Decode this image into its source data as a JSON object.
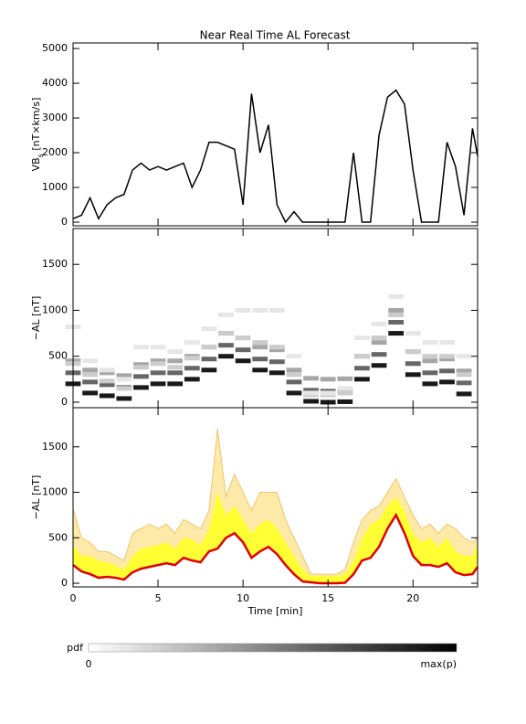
{
  "chart_data": [
    {
      "type": "line",
      "title": "Near Real Time AL Forecast",
      "ylabel": [
        "VB",
        "s",
        " [nT×km/s]"
      ],
      "xlim": [
        0,
        23.8
      ],
      "ylim": [
        -105,
        5160
      ],
      "yticks": [
        0,
        1000,
        2000,
        3000,
        4000,
        5000
      ],
      "color": "#000000",
      "x": [
        0,
        0.5,
        1,
        1.5,
        2,
        2.5,
        3,
        3.5,
        4,
        4.5,
        5,
        5.5,
        6,
        6.5,
        7,
        7.5,
        8,
        8.5,
        9,
        9.5,
        10,
        10.5,
        11,
        11.5,
        12,
        12.5,
        13,
        13.5,
        14,
        14.5,
        15,
        15.5,
        16,
        16.5,
        17,
        17.5,
        18,
        18.5,
        19,
        19.5,
        20,
        20.5,
        21,
        21.5,
        22,
        22.5,
        23,
        23.5,
        23.8
      ],
      "values": [
        100,
        200,
        700,
        100,
        500,
        700,
        800,
        1500,
        1700,
        1500,
        1600,
        1500,
        1600,
        1700,
        1000,
        1500,
        2300,
        2300,
        2200,
        2100,
        500,
        3700,
        2000,
        2800,
        500,
        0,
        300,
        0,
        0,
        0,
        0,
        0,
        0,
        2000,
        0,
        0,
        2500,
        3600,
        3800,
        3400,
        1500,
        0,
        0,
        0,
        2300,
        1600,
        200,
        2700,
        1900
      ]
    },
    {
      "type": "heatmap",
      "ylabel": "−AL [nT]",
      "xlim": [
        0,
        23.8
      ],
      "ylim": [
        -60,
        1890
      ],
      "yticks": [
        0,
        500,
        1000,
        1500
      ],
      "x": [
        0,
        0,
        0,
        0,
        0,
        1,
        1,
        1,
        1,
        1,
        2,
        2,
        2,
        2,
        2,
        3,
        3,
        3,
        3,
        3,
        4,
        4,
        4,
        4,
        4,
        5,
        5,
        5,
        5,
        5,
        6,
        6,
        6,
        6,
        6,
        7,
        7,
        7,
        7,
        7,
        8,
        8,
        8,
        8,
        8,
        9,
        9,
        9,
        9,
        9,
        10,
        10,
        10,
        10,
        10,
        11,
        11,
        11,
        11,
        11,
        12,
        12,
        12,
        12,
        12,
        13,
        13,
        13,
        13,
        13,
        14,
        14,
        14,
        14,
        14,
        15,
        15,
        15,
        15,
        15,
        16,
        16,
        16,
        16,
        16,
        17,
        17,
        17,
        17,
        17,
        18,
        18,
        18,
        18,
        18,
        19,
        19,
        19,
        19,
        19,
        20,
        20,
        20,
        20,
        20,
        21,
        21,
        21,
        21,
        21,
        22,
        22,
        22,
        22,
        22,
        23,
        23,
        23,
        23,
        23
      ],
      "y": [
        200,
        320,
        450,
        420,
        820,
        100,
        220,
        350,
        300,
        450,
        70,
        190,
        320,
        230,
        350,
        40,
        160,
        290,
        150,
        250,
        160,
        280,
        410,
        380,
        600,
        200,
        320,
        450,
        420,
        600,
        200,
        320,
        450,
        380,
        550,
        250,
        370,
        500,
        480,
        650,
        350,
        470,
        600,
        600,
        800,
        500,
        620,
        750,
        750,
        950,
        450,
        570,
        700,
        700,
        1000,
        350,
        470,
        600,
        650,
        1000,
        320,
        440,
        570,
        600,
        1000,
        100,
        220,
        350,
        300,
        500,
        10,
        130,
        260,
        80,
        100,
        0,
        120,
        250,
        80,
        100,
        5,
        125,
        255,
        100,
        150,
        250,
        370,
        500,
        500,
        700,
        400,
        520,
        650,
        700,
        850,
        750,
        870,
        1000,
        950,
        1150,
        300,
        420,
        550,
        550,
        750,
        200,
        320,
        450,
        500,
        650,
        220,
        340,
        470,
        500,
        650,
        90,
        210,
        340,
        300,
        500
      ],
      "p": [
        0.9,
        0.6,
        0.35,
        0.2,
        0.1,
        0.9,
        0.6,
        0.35,
        0.2,
        0.1,
        0.9,
        0.6,
        0.35,
        0.2,
        0.1,
        0.9,
        0.6,
        0.35,
        0.2,
        0.1,
        0.9,
        0.6,
        0.35,
        0.2,
        0.1,
        0.9,
        0.6,
        0.35,
        0.2,
        0.1,
        0.9,
        0.6,
        0.35,
        0.2,
        0.1,
        0.9,
        0.6,
        0.35,
        0.2,
        0.1,
        0.9,
        0.6,
        0.35,
        0.2,
        0.1,
        0.9,
        0.6,
        0.35,
        0.2,
        0.1,
        0.9,
        0.6,
        0.35,
        0.2,
        0.1,
        0.9,
        0.6,
        0.35,
        0.2,
        0.1,
        0.9,
        0.6,
        0.35,
        0.2,
        0.1,
        0.9,
        0.6,
        0.35,
        0.2,
        0.1,
        0.9,
        0.6,
        0.35,
        0.2,
        0.1,
        0.9,
        0.6,
        0.35,
        0.2,
        0.1,
        0.9,
        0.6,
        0.35,
        0.2,
        0.1,
        0.9,
        0.6,
        0.35,
        0.2,
        0.1,
        0.9,
        0.6,
        0.35,
        0.2,
        0.1,
        0.9,
        0.6,
        0.35,
        0.2,
        0.1,
        0.9,
        0.6,
        0.35,
        0.2,
        0.1,
        0.9,
        0.6,
        0.35,
        0.2,
        0.1,
        0.9,
        0.6,
        0.35,
        0.2,
        0.1,
        0.9,
        0.6,
        0.35,
        0.2,
        0.1
      ],
      "colorbar": {
        "label": "pdf",
        "min_label": "0",
        "max_label": "max(p)"
      }
    },
    {
      "type": "area",
      "ylabel": "−AL [nT]",
      "xlabel": "Time [min]",
      "xlim": [
        0,
        23.8
      ],
      "ylim": [
        -40,
        1930
      ],
      "yticks": [
        0,
        500,
        1000,
        1500
      ],
      "xticks": [
        0,
        5,
        10,
        15,
        20
      ],
      "x": [
        0,
        0.5,
        1,
        1.5,
        2,
        2.5,
        3,
        3.5,
        4,
        4.5,
        5,
        5.5,
        6,
        6.5,
        7,
        7.5,
        8,
        8.5,
        9,
        9.5,
        10,
        10.5,
        11,
        11.5,
        12,
        12.5,
        13,
        13.5,
        14,
        14.5,
        15,
        15.5,
        16,
        16.5,
        17,
        17.5,
        18,
        18.5,
        19,
        19.5,
        20,
        20.5,
        21,
        21.5,
        22,
        22.5,
        23,
        23.5,
        23.8
      ],
      "series": [
        {
          "color": "#fde9a8",
          "values": [
            820,
            500,
            450,
            350,
            350,
            300,
            250,
            550,
            600,
            650,
            600,
            650,
            550,
            700,
            650,
            600,
            800,
            1700,
            950,
            1200,
            1000,
            800,
            1000,
            1000,
            1000,
            700,
            500,
            300,
            100,
            100,
            100,
            100,
            150,
            450,
            700,
            800,
            850,
            1000,
            1150,
            950,
            750,
            600,
            650,
            550,
            650,
            600,
            500,
            450,
            500
          ]
        },
        {
          "color": "#ffff33",
          "values": [
            420,
            300,
            300,
            250,
            230,
            200,
            150,
            300,
            380,
            400,
            420,
            450,
            380,
            500,
            480,
            420,
            600,
            1000,
            750,
            850,
            700,
            550,
            650,
            700,
            600,
            450,
            300,
            150,
            80,
            80,
            80,
            80,
            100,
            250,
            500,
            650,
            700,
            850,
            950,
            800,
            550,
            450,
            500,
            400,
            500,
            350,
            300,
            300,
            450
          ]
        },
        {
          "color": "#e00000",
          "values": [
            200,
            130,
            100,
            60,
            70,
            60,
            40,
            120,
            160,
            180,
            200,
            220,
            200,
            280,
            250,
            230,
            350,
            380,
            500,
            550,
            450,
            280,
            350,
            400,
            320,
            200,
            100,
            20,
            10,
            0,
            0,
            0,
            5,
            100,
            250,
            280,
            400,
            600,
            750,
            550,
            300,
            200,
            200,
            180,
            220,
            120,
            90,
            100,
            180
          ]
        }
      ]
    }
  ]
}
